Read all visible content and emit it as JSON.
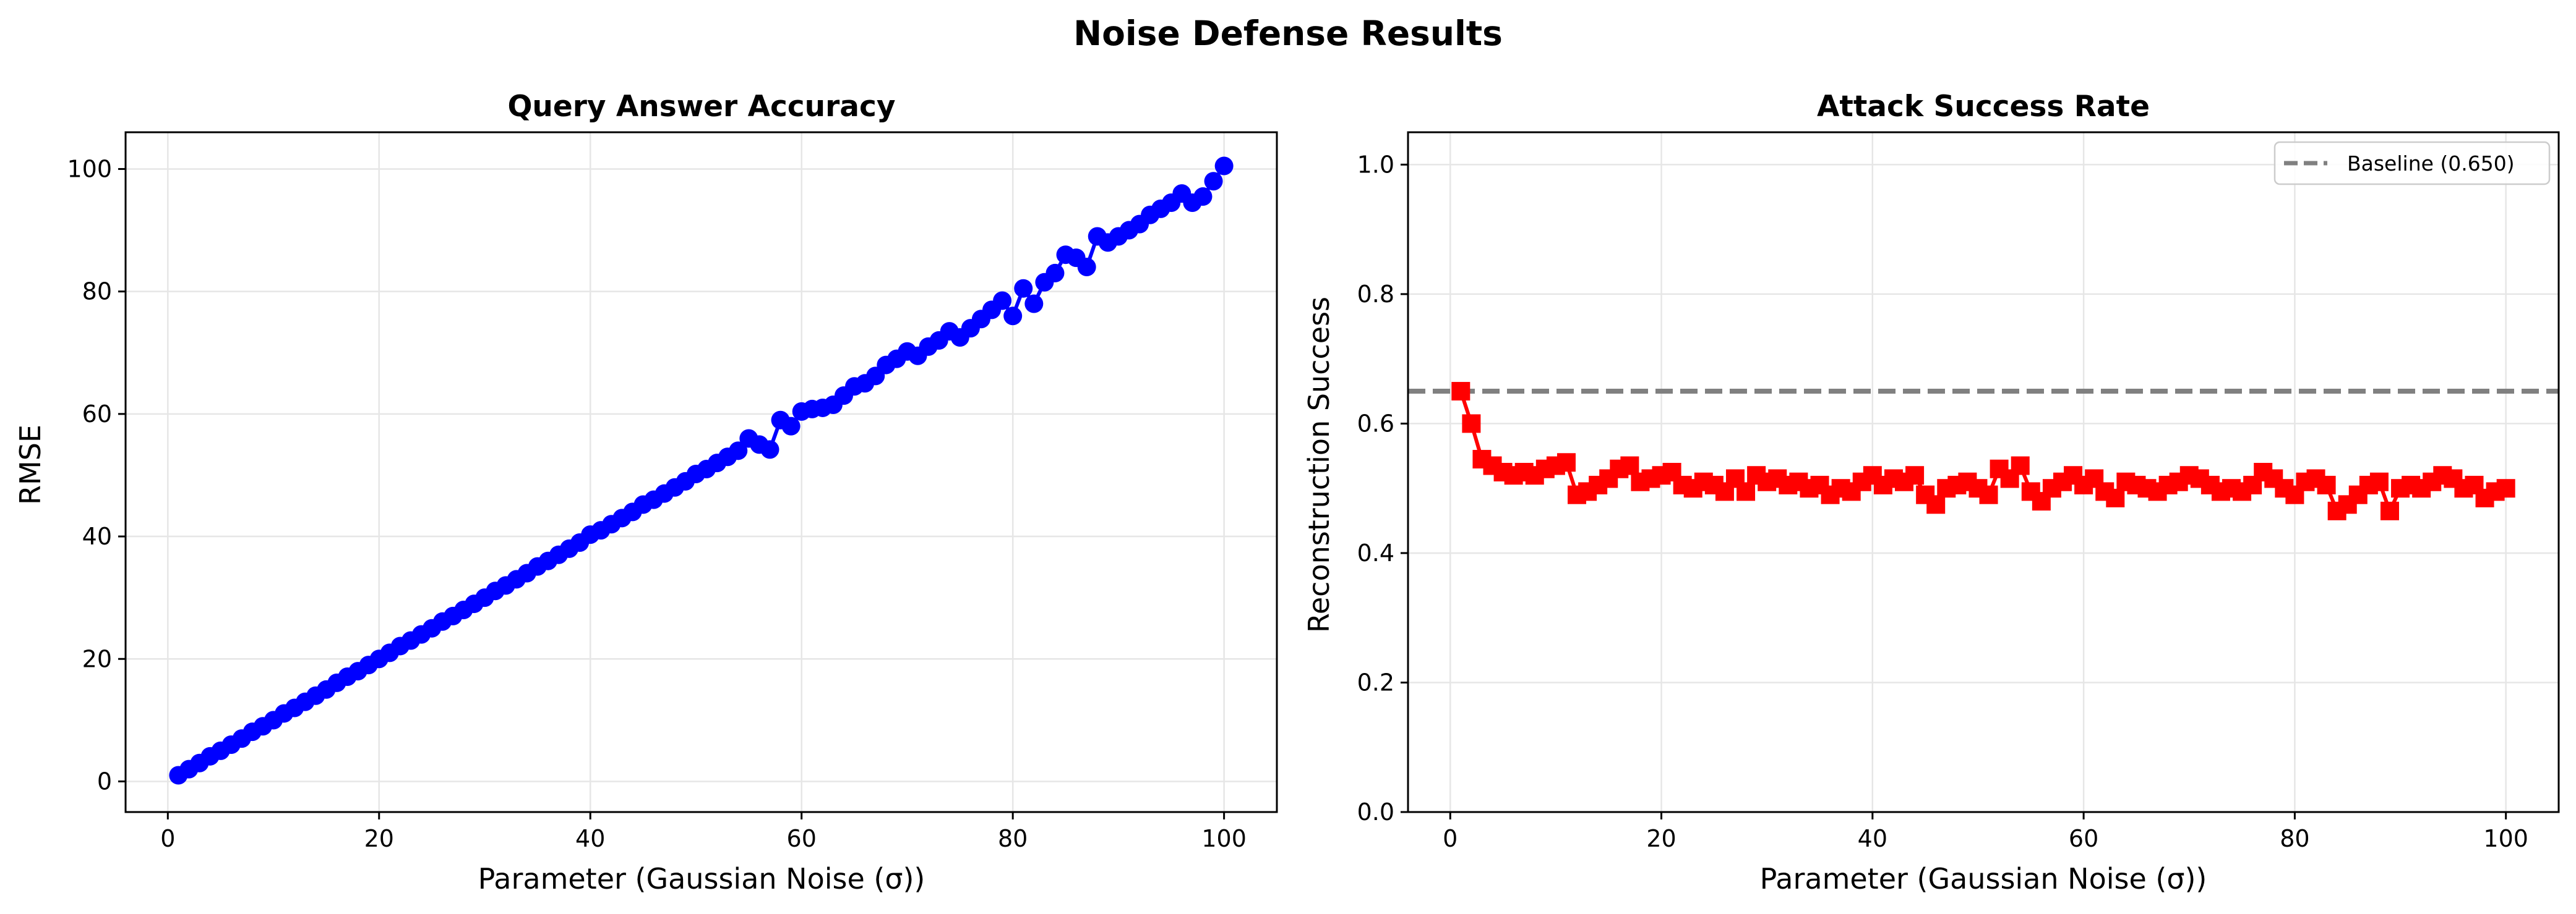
{
  "figure": {
    "suptitle": "Noise Defense Results"
  },
  "chart_data": [
    {
      "type": "line",
      "title": "Query Answer Accuracy",
      "xlabel": "Parameter (Gaussian Noise (σ))",
      "ylabel": "RMSE",
      "xlim": [
        -4,
        105
      ],
      "ylim": [
        -5,
        106
      ],
      "xticks": [
        0,
        20,
        40,
        60,
        80,
        100
      ],
      "yticks": [
        0,
        20,
        40,
        60,
        80,
        100
      ],
      "grid": true,
      "marker": "circle",
      "color": "#0000ff",
      "series": [
        {
          "x": [
            1,
            2,
            3,
            4,
            5,
            6,
            7,
            8,
            9,
            10,
            11,
            12,
            13,
            14,
            15,
            16,
            17,
            18,
            19,
            20,
            21,
            22,
            23,
            24,
            25,
            26,
            27,
            28,
            29,
            30,
            31,
            32,
            33,
            34,
            35,
            36,
            37,
            38,
            39,
            40,
            41,
            42,
            43,
            44,
            45,
            46,
            47,
            48,
            49,
            50,
            51,
            52,
            53,
            54,
            55,
            56,
            57,
            58,
            59,
            60,
            61,
            62,
            63,
            64,
            65,
            66,
            67,
            68,
            69,
            70,
            71,
            72,
            73,
            74,
            75,
            76,
            77,
            78,
            79,
            80,
            81,
            82,
            83,
            84,
            85,
            86,
            87,
            88,
            89,
            90,
            91,
            92,
            93,
            94,
            95,
            96,
            97,
            98,
            99,
            100
          ],
          "y": [
            1.0,
            2.0,
            3.0,
            4.1,
            5.0,
            6.0,
            7.0,
            8.1,
            9.0,
            10.0,
            11.1,
            12.0,
            13.0,
            14.0,
            15.0,
            16.1,
            17.1,
            18.0,
            19.0,
            20.0,
            21.0,
            22.1,
            23.0,
            24.0,
            25.0,
            26.1,
            27.0,
            28.0,
            29.0,
            30.0,
            31.1,
            32.0,
            33.0,
            34.0,
            35.1,
            36.0,
            37.0,
            38.0,
            39.0,
            40.3,
            41.0,
            42.0,
            43.0,
            44.0,
            45.2,
            46.0,
            47.0,
            48.0,
            49.0,
            50.2,
            51.0,
            52.0,
            53.0,
            54.0,
            56.0,
            55.0,
            54.2,
            59.0,
            58.0,
            60.4,
            60.8,
            61.0,
            61.5,
            63.0,
            64.5,
            65.0,
            66.2,
            68.0,
            69.0,
            70.2,
            69.5,
            71.0,
            72.0,
            73.5,
            72.5,
            74.0,
            75.5,
            77.0,
            78.5,
            76.0,
            80.5,
            78.0,
            81.5,
            83.0,
            86.0,
            85.5,
            84.0,
            89.0,
            88.0,
            89.0,
            90.0,
            91.0,
            92.5,
            93.5,
            94.5,
            96.0,
            94.5,
            95.5,
            98.0,
            100.5
          ]
        }
      ]
    },
    {
      "type": "line",
      "title": "Attack Success Rate",
      "xlabel": "Parameter (Gaussian Noise (σ))",
      "ylabel": "Reconstruction Success",
      "xlim": [
        -4,
        105
      ],
      "ylim": [
        0.0,
        1.05
      ],
      "xticks": [
        0,
        20,
        40,
        60,
        80,
        100
      ],
      "yticks": [
        0.0,
        0.2,
        0.4,
        0.6,
        0.8,
        1.0
      ],
      "grid": true,
      "marker": "square",
      "color": "#ff0000",
      "legend_position": "top-right",
      "baseline": {
        "label": "Baseline (0.650)",
        "value": 0.65,
        "color": "#808080",
        "style": "dashed"
      },
      "series": [
        {
          "x": [
            1,
            2,
            3,
            4,
            5,
            6,
            7,
            8,
            9,
            10,
            11,
            12,
            13,
            14,
            15,
            16,
            17,
            18,
            19,
            20,
            21,
            22,
            23,
            24,
            25,
            26,
            27,
            28,
            29,
            30,
            31,
            32,
            33,
            34,
            35,
            36,
            37,
            38,
            39,
            40,
            41,
            42,
            43,
            44,
            45,
            46,
            47,
            48,
            49,
            50,
            51,
            52,
            53,
            54,
            55,
            56,
            57,
            58,
            59,
            60,
            61,
            62,
            63,
            64,
            65,
            66,
            67,
            68,
            69,
            70,
            71,
            72,
            73,
            74,
            75,
            76,
            77,
            78,
            79,
            80,
            81,
            82,
            83,
            84,
            85,
            86,
            87,
            88,
            89,
            90,
            91,
            92,
            93,
            94,
            95,
            96,
            97,
            98,
            99,
            100
          ],
          "y": [
            0.65,
            0.6,
            0.545,
            0.535,
            0.525,
            0.52,
            0.525,
            0.52,
            0.53,
            0.535,
            0.54,
            0.49,
            0.495,
            0.505,
            0.515,
            0.53,
            0.535,
            0.51,
            0.515,
            0.52,
            0.525,
            0.505,
            0.5,
            0.51,
            0.505,
            0.495,
            0.515,
            0.495,
            0.52,
            0.51,
            0.515,
            0.505,
            0.51,
            0.5,
            0.505,
            0.49,
            0.5,
            0.495,
            0.51,
            0.52,
            0.505,
            0.515,
            0.51,
            0.52,
            0.49,
            0.475,
            0.5,
            0.505,
            0.51,
            0.5,
            0.49,
            0.53,
            0.515,
            0.535,
            0.495,
            0.48,
            0.5,
            0.51,
            0.52,
            0.505,
            0.515,
            0.495,
            0.485,
            0.51,
            0.505,
            0.5,
            0.495,
            0.505,
            0.51,
            0.52,
            0.515,
            0.505,
            0.495,
            0.5,
            0.495,
            0.505,
            0.525,
            0.515,
            0.5,
            0.49,
            0.51,
            0.515,
            0.505,
            0.465,
            0.475,
            0.49,
            0.505,
            0.51,
            0.465,
            0.5,
            0.505,
            0.5,
            0.51,
            0.52,
            0.515,
            0.5,
            0.505,
            0.485,
            0.495,
            0.5
          ]
        }
      ]
    }
  ]
}
